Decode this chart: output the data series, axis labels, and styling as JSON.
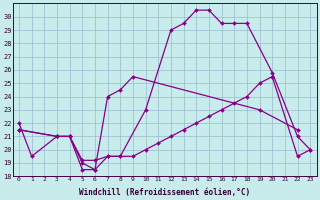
{
  "xlabel": "Windchill (Refroidissement éolien,°C)",
  "line1_x": [
    0,
    1,
    3,
    4,
    5,
    6,
    7,
    8,
    10,
    12,
    13,
    14,
    15,
    16,
    17,
    18,
    20,
    22,
    23
  ],
  "line1_y": [
    22.0,
    19.5,
    21.0,
    21.0,
    18.5,
    18.5,
    19.5,
    19.5,
    23.0,
    29.0,
    29.5,
    30.5,
    30.5,
    29.5,
    29.5,
    29.5,
    25.8,
    21.0,
    20.0
  ],
  "line2_x": [
    0,
    3,
    4,
    5,
    6,
    7,
    8,
    9,
    19,
    22
  ],
  "line2_y": [
    21.5,
    21.0,
    21.0,
    19.0,
    18.5,
    24.0,
    24.5,
    25.5,
    23.0,
    21.5
  ],
  "line3_x": [
    0,
    3,
    4,
    5,
    6,
    7,
    8,
    9,
    10,
    11,
    12,
    13,
    14,
    15,
    16,
    17,
    18,
    19,
    20,
    22,
    23
  ],
  "line3_y": [
    21.5,
    21.0,
    21.0,
    19.2,
    19.2,
    19.5,
    19.5,
    19.5,
    20.0,
    20.5,
    21.0,
    21.5,
    22.0,
    22.5,
    23.0,
    23.5,
    24.0,
    25.0,
    25.5,
    19.5,
    20.0
  ],
  "ylim": [
    18,
    31
  ],
  "yticks": [
    18,
    19,
    20,
    21,
    22,
    23,
    24,
    25,
    26,
    27,
    28,
    29,
    30
  ],
  "xticks": [
    0,
    1,
    2,
    3,
    4,
    5,
    6,
    7,
    8,
    9,
    10,
    11,
    12,
    13,
    14,
    15,
    16,
    17,
    18,
    19,
    20,
    21,
    22,
    23
  ],
  "line_color": "#880088",
  "bg_color": "#c8ecec",
  "grid_color": "#99bbcc",
  "marker": "D",
  "marker_size": 2.0,
  "line_width": 0.9,
  "tick_font_size": 4.5,
  "xlabel_font_size": 5.5
}
